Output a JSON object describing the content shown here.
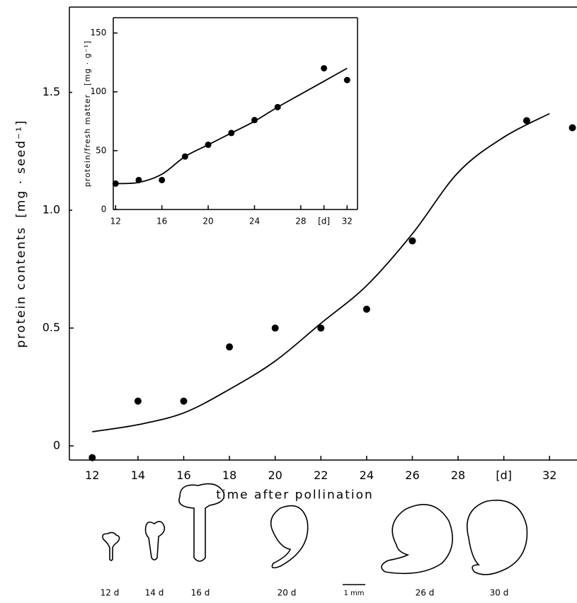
{
  "chart_data": [
    {
      "type": "scatter",
      "xlabel": "time after pollination",
      "ylabel": "protein contents",
      "y_unit": "[mg · seed⁻¹]",
      "xlim": [
        11,
        33.2
      ],
      "ylim": [
        -0.06,
        1.862
      ],
      "xticks": [
        12,
        14,
        16,
        18,
        20,
        22,
        24,
        26,
        28,
        {
          "value": 30,
          "label": "[d]"
        },
        32
      ],
      "yticks": [
        0,
        0.5,
        {
          "value": 1,
          "label": "1.0"
        },
        1.5
      ],
      "color": "#000000",
      "series": [
        {
          "style": "markers",
          "x": [
            12,
            14,
            16,
            18,
            20,
            22,
            24,
            26,
            31,
            33
          ],
          "values": [
            -0.05,
            0.19,
            0.19,
            0.42,
            0.5,
            0.5,
            0.58,
            0.87,
            1.38,
            1.35
          ]
        },
        {
          "style": "line",
          "x": [
            12,
            14,
            16,
            18,
            20,
            22,
            24,
            26,
            28,
            30,
            32
          ],
          "values": [
            0.06,
            0.09,
            0.14,
            0.24,
            0.36,
            0.52,
            0.68,
            0.9,
            1.16,
            1.31,
            1.41
          ]
        }
      ]
    },
    {
      "type": "scatter",
      "ylabel": "protein/fresh matter",
      "y_unit": "[mg · g⁻¹]",
      "xlim": [
        11.8,
        32.9
      ],
      "ylim": [
        0,
        163
      ],
      "xticks": [
        12,
        16,
        20,
        24,
        28,
        {
          "value": 30,
          "label": "[d]"
        },
        32
      ],
      "yticks": [
        0,
        50,
        100,
        150
      ],
      "color": "#000000",
      "series": [
        {
          "style": "markers",
          "x": [
            12,
            14,
            16,
            18,
            20,
            22,
            24,
            26,
            30,
            32
          ],
          "values": [
            22,
            25,
            25,
            45,
            55,
            65,
            76,
            87,
            120,
            110
          ]
        },
        {
          "style": "line",
          "x": [
            12,
            14,
            16,
            18,
            20,
            22,
            24,
            26,
            28,
            30,
            32
          ],
          "values": [
            22,
            23,
            30,
            45,
            55,
            65,
            75,
            87,
            98,
            109,
            120
          ]
        }
      ]
    }
  ],
  "embryo_stages": [
    "12 d",
    "14 d",
    "16 d",
    "20 d",
    "26 d",
    "30 d"
  ],
  "scale_bar": "1 mm"
}
